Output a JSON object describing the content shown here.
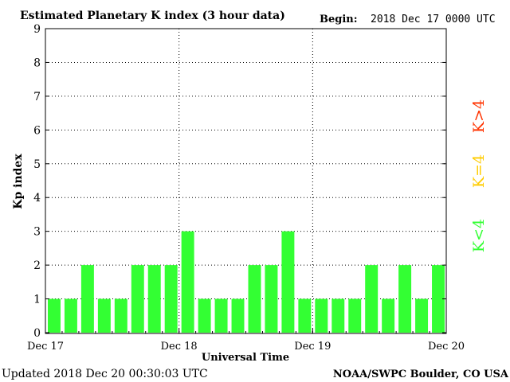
{
  "title": "Estimated Planetary K index (3 hour data)",
  "begin_label": "Begin:",
  "begin_value": "2018 Dec 17 0000 UTC",
  "updated_text": "Updated 2018 Dec 20 00:30:03 UTC",
  "credit_text": "NOAA/SWPC Boulder, CO USA",
  "colors": {
    "below_storm": "#33ff33",
    "storm_threshold": "#ffcc00",
    "storm": "#ff3300"
  },
  "chart_data": {
    "type": "bar",
    "xlabel": "Universal Time",
    "ylabel": "Kp index",
    "ylim": [
      0,
      9
    ],
    "yticks": [
      "0",
      "1",
      "2",
      "3",
      "4",
      "5",
      "6",
      "7",
      "8",
      "9"
    ],
    "x_tick_labels": [
      "Dec 17",
      "Dec 18",
      "Dec 19",
      "Dec 20"
    ],
    "grid": true,
    "legend": [
      "K<4",
      "K=4",
      "K>4"
    ],
    "values": [
      1,
      1,
      2,
      1,
      1,
      2,
      2,
      2,
      3,
      1,
      1,
      1,
      2,
      2,
      3,
      1,
      1,
      1,
      1,
      2,
      1,
      2,
      1,
      2
    ]
  }
}
